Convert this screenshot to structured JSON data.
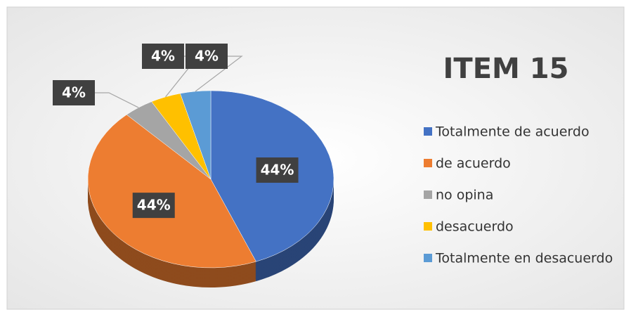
{
  "chart_data": {
    "type": "pie",
    "title": "ITEM 15",
    "categories": [
      "Totalmente de acuerdo",
      "de acuerdo",
      "no opina",
      "desacuerdo",
      "Totalmente en desacuerdo"
    ],
    "values": [
      44,
      44,
      4,
      4,
      4
    ],
    "value_labels": [
      "44%",
      "44%",
      "4%",
      "4%",
      "4%"
    ],
    "colors": [
      "#4472c4",
      "#ed7d31",
      "#a5a5a5",
      "#ffc000",
      "#5b9bd5"
    ],
    "legend": "right"
  }
}
